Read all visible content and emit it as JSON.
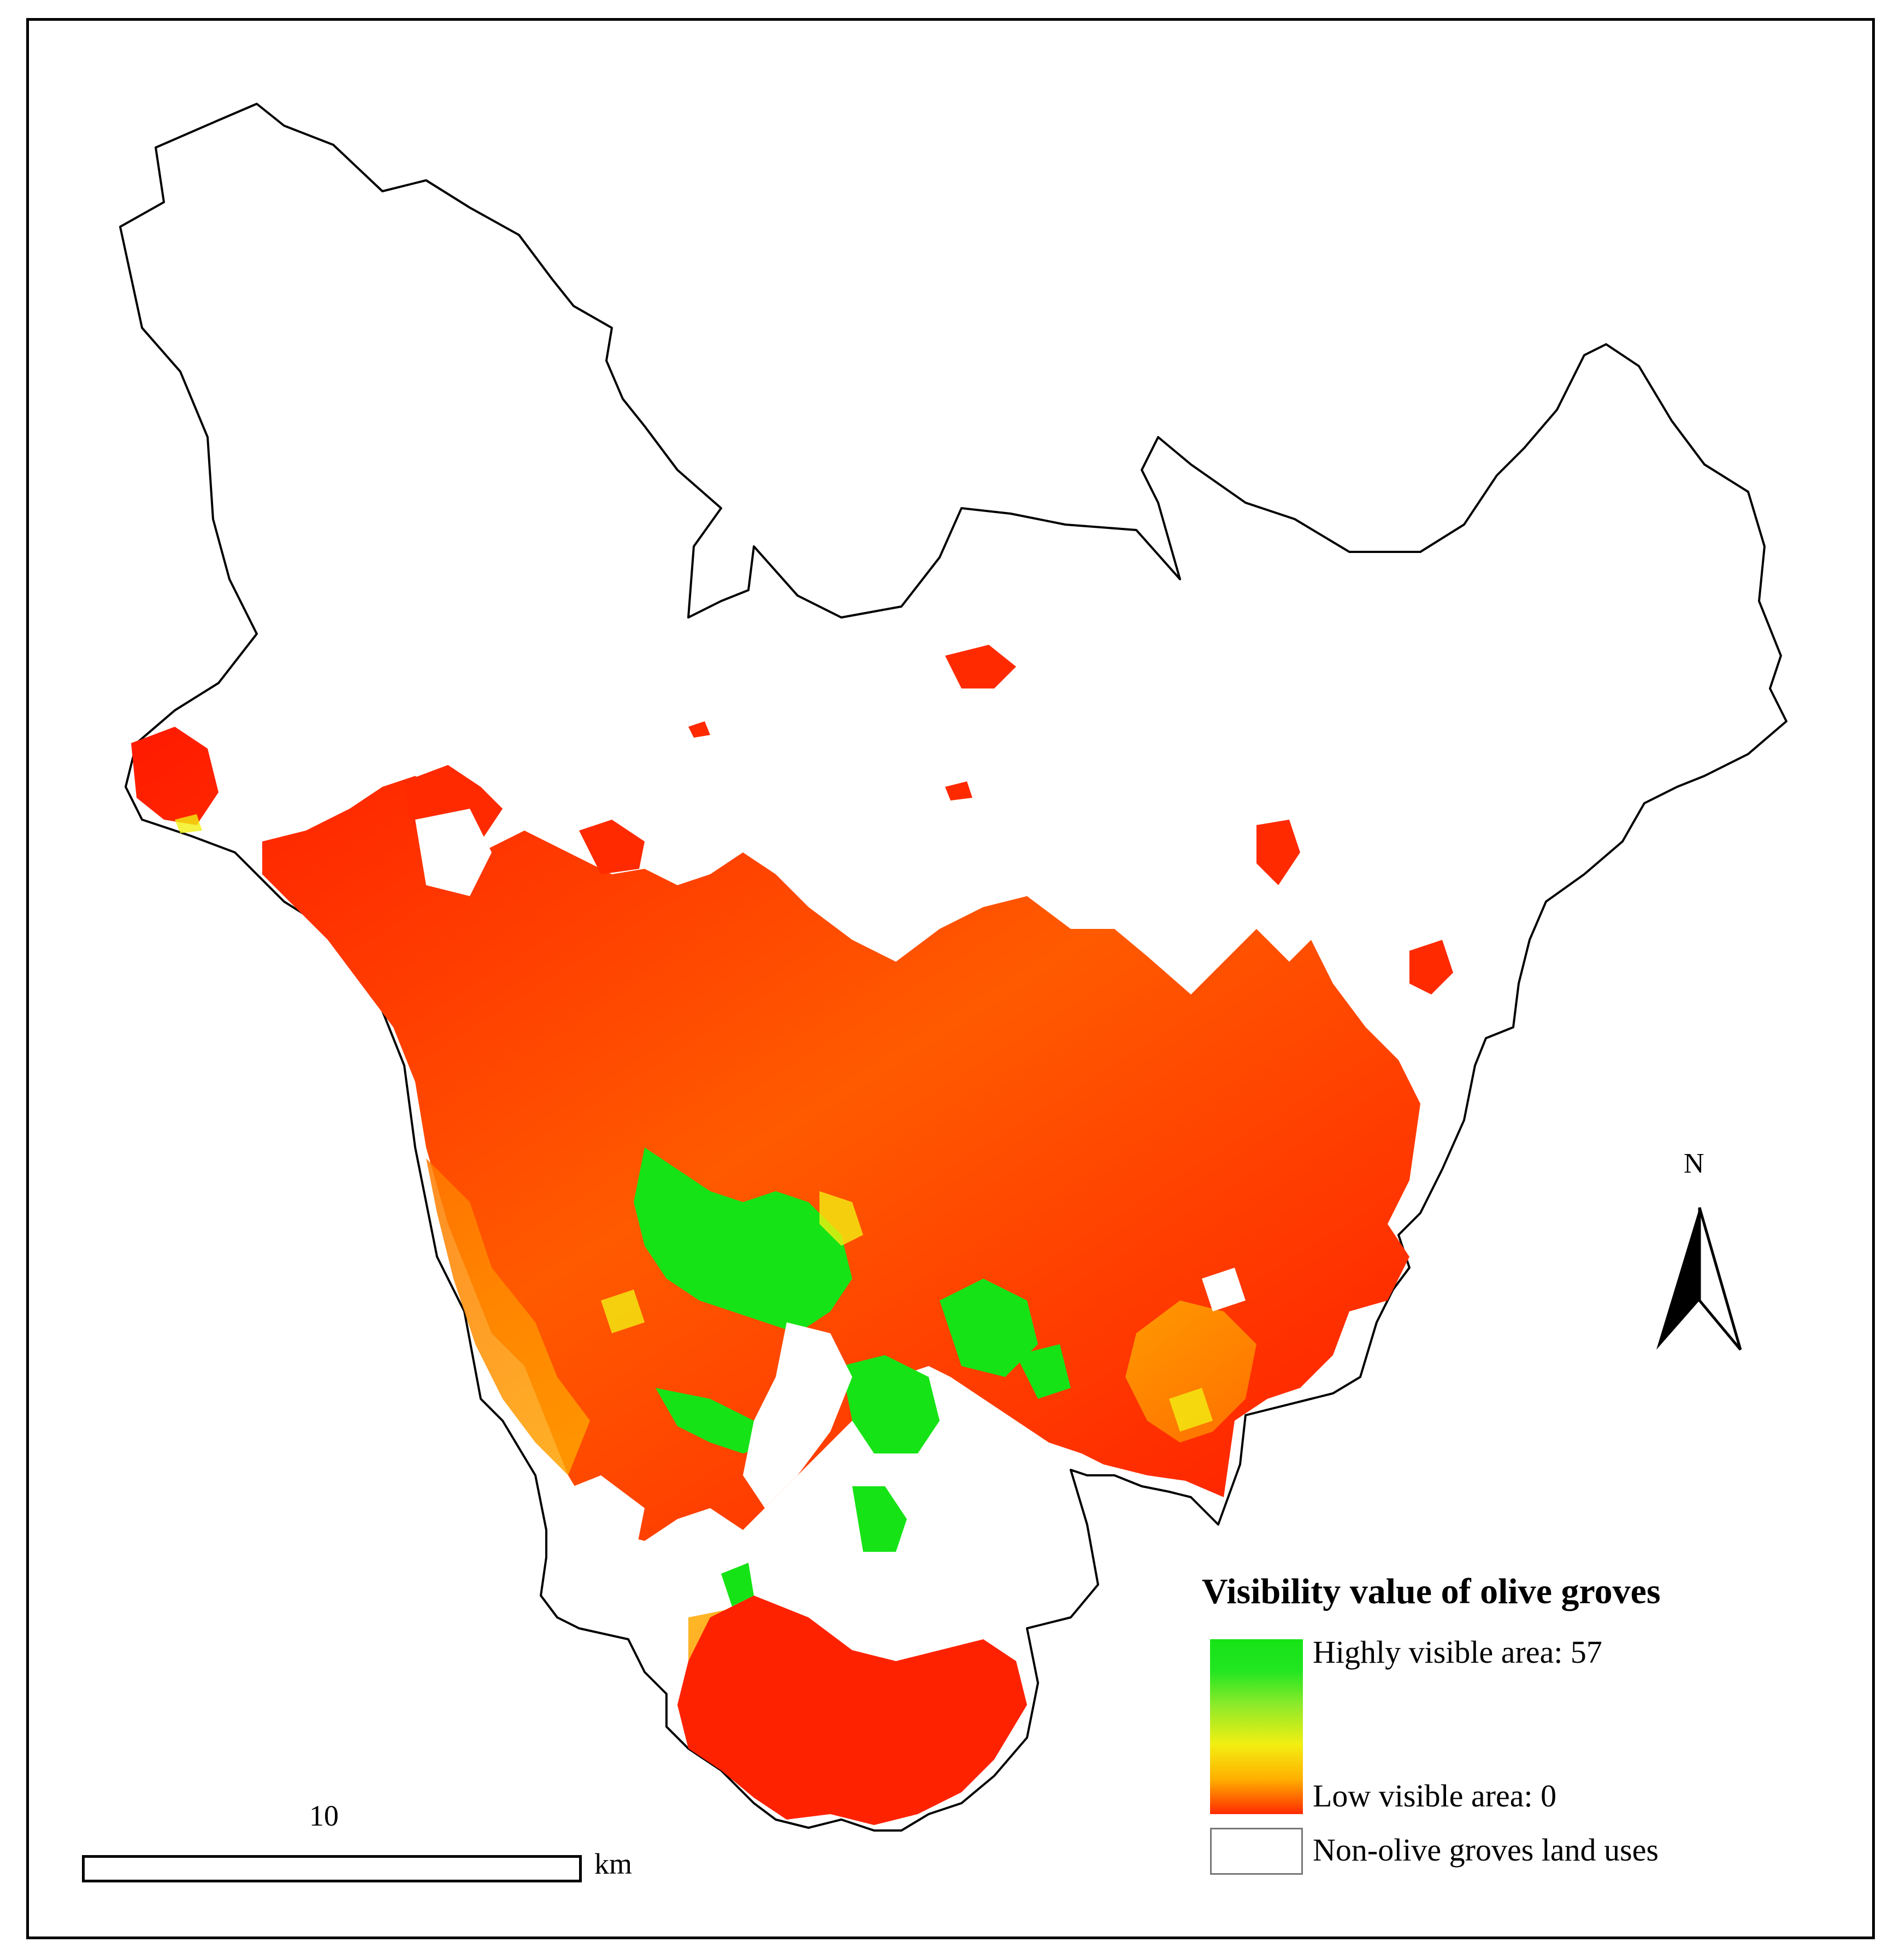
{
  "map": {
    "colors": {
      "high": "#16e316",
      "mid": "#f2ef12",
      "mid_low": "#ffa500",
      "low": "#ff1a00",
      "boundary": "#000000",
      "background": "#ffffff"
    }
  },
  "legend": {
    "title": "Visibility value of olive groves",
    "high_label": "Highly visible area: 57",
    "low_label": "Low visible area: 0",
    "non_olive_label": "Non-olive groves land uses"
  },
  "scale_bar": {
    "value": "10",
    "unit": "km"
  },
  "north_arrow": {
    "label": "N"
  }
}
